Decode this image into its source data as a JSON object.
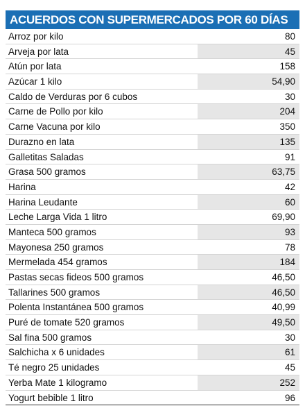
{
  "header": {
    "title": "ACUERDOS CON SUPERMERCADOS POR 60 DÍAS"
  },
  "table": {
    "rows": [
      [
        "Arroz por kilo",
        "80"
      ],
      [
        "Arveja por lata",
        "45"
      ],
      [
        "Atún por lata",
        "158"
      ],
      [
        "Azúcar 1 kilo",
        "54,90"
      ],
      [
        "Caldo de Verduras por 6 cubos",
        "30"
      ],
      [
        "Carne de Pollo por kilo",
        "204"
      ],
      [
        "Carne Vacuna por kilo",
        "350"
      ],
      [
        "Durazno en lata",
        "135"
      ],
      [
        "Galletitas Saladas",
        "91"
      ],
      [
        "Grasa 500 gramos",
        "63,75"
      ],
      [
        "Harina",
        "42"
      ],
      [
        "Harina Leudante",
        "60"
      ],
      [
        "Leche Larga Vida 1 litro",
        "69,90"
      ],
      [
        "Manteca 500 gramos",
        "93"
      ],
      [
        "Mayonesa 250 gramos",
        "78"
      ],
      [
        "Mermelada 454 gramos",
        "184"
      ],
      [
        "Pastas secas fideos 500 gramos",
        "46,50"
      ],
      [
        "Tallarines 500 gramos",
        "46,50"
      ],
      [
        "Polenta Instantánea 500 gramos",
        "40,99"
      ],
      [
        "Puré de tomate 520 gramos",
        "49,50"
      ],
      [
        "Sal fina 500 gramos",
        "30"
      ],
      [
        "Salchicha x 6 unidades",
        "61"
      ],
      [
        "Té negro 25 unidades",
        "45"
      ],
      [
        "Yerba Mate 1 kilogramo",
        "252"
      ],
      [
        "Yogurt bebible 1 litro",
        "96"
      ]
    ]
  }
}
